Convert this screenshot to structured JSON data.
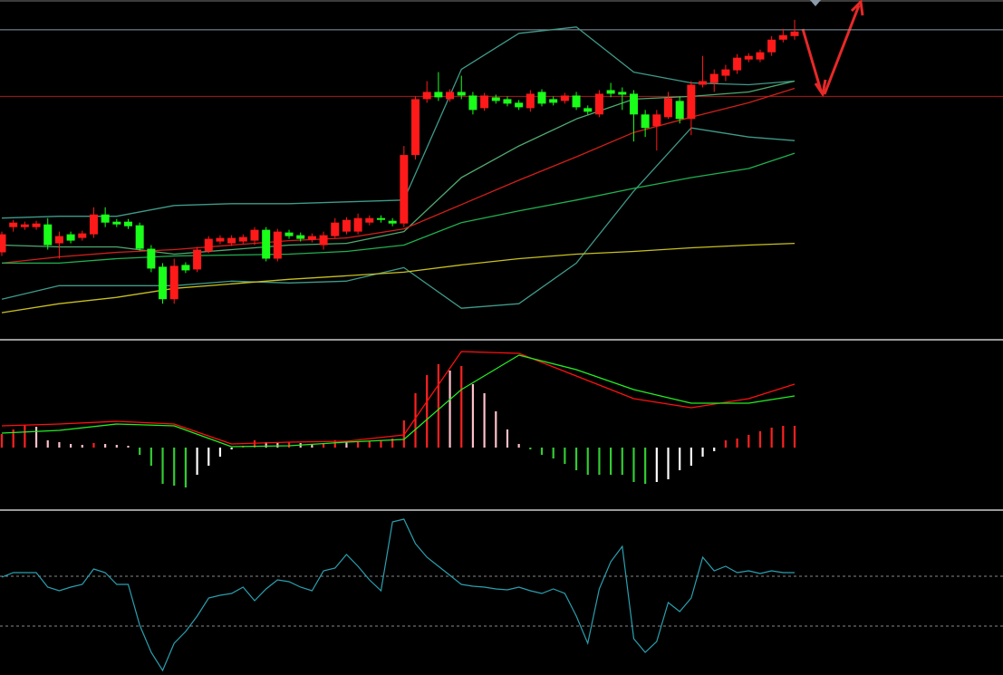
{
  "chart_data": [
    {
      "type": "candlestick",
      "ylim": [
        0,
        372
      ],
      "up_color": "#ff1a1a",
      "down_color": "#1aff1a",
      "open": [
        94,
        122,
        122,
        122,
        125,
        104,
        114,
        110,
        114,
        136,
        128,
        128,
        124,
        98,
        78,
        42,
        80,
        75,
        95,
        106,
        104,
        106,
        107,
        119,
        87,
        116,
        113,
        108,
        102,
        112,
        117,
        117,
        127,
        132,
        129,
        126,
        202,
        264,
        272,
        264,
        272,
        268,
        254,
        266,
        264,
        260,
        254,
        272,
        264,
        262,
        268,
        254,
        247,
        274,
        272,
        270,
        247,
        234,
        244,
        262,
        242,
        280,
        282,
        290,
        296,
        308,
        308,
        316,
        330,
        334
      ],
      "high": [
        117,
        130,
        128,
        129,
        132,
        117,
        117,
        118,
        144,
        144,
        131,
        131,
        127,
        102,
        82,
        87,
        83,
        100,
        112,
        113,
        113,
        114,
        122,
        122,
        120,
        119,
        116,
        115,
        117,
        132,
        133,
        137,
        135,
        135,
        132,
        212,
        267,
        284,
        294,
        275,
        290,
        272,
        271,
        269,
        267,
        263,
        274,
        275,
        267,
        271,
        272,
        257,
        274,
        282,
        277,
        274,
        252,
        252,
        272,
        267,
        284,
        312,
        297,
        302,
        314,
        315,
        319,
        334,
        342,
        352
      ],
      "low": [
        90,
        117,
        119,
        119,
        97,
        87,
        104,
        107,
        110,
        122,
        122,
        120,
        96,
        72,
        37,
        37,
        71,
        72,
        93,
        103,
        101,
        103,
        102,
        84,
        84,
        109,
        106,
        105,
        97,
        110,
        114,
        114,
        124,
        127,
        123,
        122,
        197,
        260,
        262,
        261,
        264,
        247,
        251,
        259,
        256,
        252,
        250,
        256,
        257,
        259,
        252,
        247,
        244,
        266,
        252,
        217,
        222,
        207,
        242,
        237,
        224,
        277,
        272,
        284,
        292,
        305,
        305,
        312,
        327,
        330
      ],
      "close": [
        114,
        127,
        125,
        126,
        102,
        112,
        107,
        115,
        136,
        127,
        125,
        123,
        98,
        76,
        42,
        79,
        74,
        97,
        109,
        110,
        110,
        111,
        119,
        87,
        117,
        112,
        109,
        112,
        113,
        127,
        130,
        132,
        132,
        130,
        126,
        202,
        264,
        272,
        266,
        272,
        268,
        252,
        268,
        262,
        259,
        255,
        270,
        259,
        260,
        268,
        255,
        250,
        270,
        270,
        269,
        247,
        232,
        247,
        265,
        242,
        280,
        284,
        292,
        297,
        310,
        312,
        316,
        330,
        335,
        339
      ],
      "levels": [
        {
          "value": 341,
          "color": "#8a9aa8"
        },
        {
          "value": 267,
          "color": "#b01818"
        }
      ],
      "lines": [
        {
          "color": "#3f9a8a",
          "x": [
            0,
            5,
            10,
            15,
            20,
            25,
            30,
            35,
            40,
            45,
            50,
            55,
            60,
            65,
            69
          ],
          "values": [
            132,
            134,
            134,
            146,
            148,
            148,
            150,
            152,
            297,
            337,
            344,
            294,
            282,
            280,
            284
          ]
        },
        {
          "color": "#3f9a8a",
          "x": [
            0,
            5,
            10,
            15,
            20,
            25,
            30,
            35,
            40,
            45,
            50,
            55,
            60,
            65,
            69
          ],
          "values": [
            42,
            57,
            57,
            57,
            62,
            60,
            62,
            77,
            32,
            37,
            82,
            162,
            232,
            222,
            218
          ]
        },
        {
          "color": "#4fa870",
          "x": [
            0,
            5,
            10,
            15,
            20,
            25,
            30,
            35,
            40,
            45,
            50,
            55,
            60,
            65,
            69
          ],
          "values": [
            102,
            100,
            100,
            92,
            97,
            102,
            104,
            117,
            177,
            212,
            242,
            264,
            267,
            272,
            284
          ]
        },
        {
          "color": "#d0201a",
          "x": [
            0,
            5,
            10,
            15,
            20,
            25,
            30,
            35,
            40,
            45,
            50,
            55,
            60,
            65,
            69
          ],
          "values": [
            82,
            89,
            94,
            97,
            102,
            107,
            110,
            120,
            147,
            174,
            200,
            227,
            244,
            260,
            276
          ]
        },
        {
          "color": "#20b050",
          "x": [
            0,
            5,
            10,
            15,
            20,
            25,
            30,
            35,
            40,
            45,
            50,
            55,
            60,
            65,
            69
          ],
          "values": [
            82,
            82,
            87,
            90,
            91,
            92,
            95,
            102,
            127,
            140,
            152,
            165,
            177,
            187,
            204
          ]
        },
        {
          "color": "#c8c020",
          "x": [
            0,
            5,
            10,
            15,
            20,
            25,
            30,
            35,
            40,
            45,
            50,
            55,
            60,
            65,
            69
          ],
          "values": [
            27,
            37,
            44,
            54,
            59,
            64,
            68,
            72,
            80,
            87,
            92,
            95,
            99,
            102,
            104
          ]
        }
      ]
    },
    {
      "type": "macd",
      "ylim": [
        -68,
        117
      ],
      "values": [
        15,
        20,
        25,
        23,
        8,
        6,
        4,
        3,
        5,
        4,
        3,
        2,
        -8,
        -20,
        -40,
        -42,
        -44,
        -30,
        -20,
        -10,
        -2,
        2,
        8,
        6,
        5,
        6,
        5,
        4,
        5,
        8,
        7,
        7,
        7,
        8,
        10,
        30,
        60,
        80,
        92,
        85,
        90,
        70,
        60,
        40,
        20,
        4,
        -2,
        -8,
        -12,
        -18,
        -25,
        -30,
        -30,
        -30,
        -30,
        -38,
        -40,
        -38,
        -35,
        -25,
        -20,
        -10,
        -4,
        8,
        10,
        14,
        18,
        22,
        24,
        24
      ],
      "colors": {
        "rise_above": "#ff2020",
        "fall_above": "#ffc0cb",
        "fall_below": "#33cc33",
        "rise_below": "#ffffff"
      },
      "lines": [
        {
          "color": "#ff1010",
          "x": [
            0,
            5,
            10,
            15,
            20,
            25,
            30,
            35,
            40,
            45,
            50,
            55,
            60,
            65,
            69
          ],
          "values": [
            24,
            26,
            29,
            26,
            4,
            6,
            7,
            14,
            106,
            104,
            79,
            54,
            44,
            54,
            70
          ]
        },
        {
          "color": "#22ee22",
          "x": [
            0,
            5,
            10,
            15,
            20,
            25,
            30,
            35,
            40,
            45,
            50,
            55,
            60,
            65,
            69
          ],
          "values": [
            16,
            19,
            26,
            24,
            1,
            2,
            6,
            9,
            64,
            102,
            86,
            64,
            49,
            49,
            57
          ]
        }
      ]
    },
    {
      "type": "line",
      "ylim": [
        0,
        180
      ],
      "color": "#2aa0b0",
      "levels": [
        {
          "value": 109,
          "color": "#888888"
        },
        {
          "value": 54,
          "color": "#888888"
        }
      ],
      "values": [
        108,
        113,
        113,
        113,
        97,
        93,
        97,
        100,
        117,
        113,
        100,
        100,
        55,
        25,
        5,
        35,
        48,
        65,
        85,
        88,
        90,
        97,
        82,
        95,
        105,
        103,
        97,
        93,
        115,
        118,
        133,
        120,
        105,
        93,
        169,
        172,
        145,
        130,
        120,
        110,
        100,
        98,
        97,
        95,
        94,
        97,
        93,
        90,
        95,
        90,
        65,
        35,
        95,
        125,
        142,
        40,
        25,
        37,
        80,
        70,
        85,
        130,
        115,
        120,
        113,
        115,
        112,
        115,
        113,
        113
      ]
    }
  ]
}
